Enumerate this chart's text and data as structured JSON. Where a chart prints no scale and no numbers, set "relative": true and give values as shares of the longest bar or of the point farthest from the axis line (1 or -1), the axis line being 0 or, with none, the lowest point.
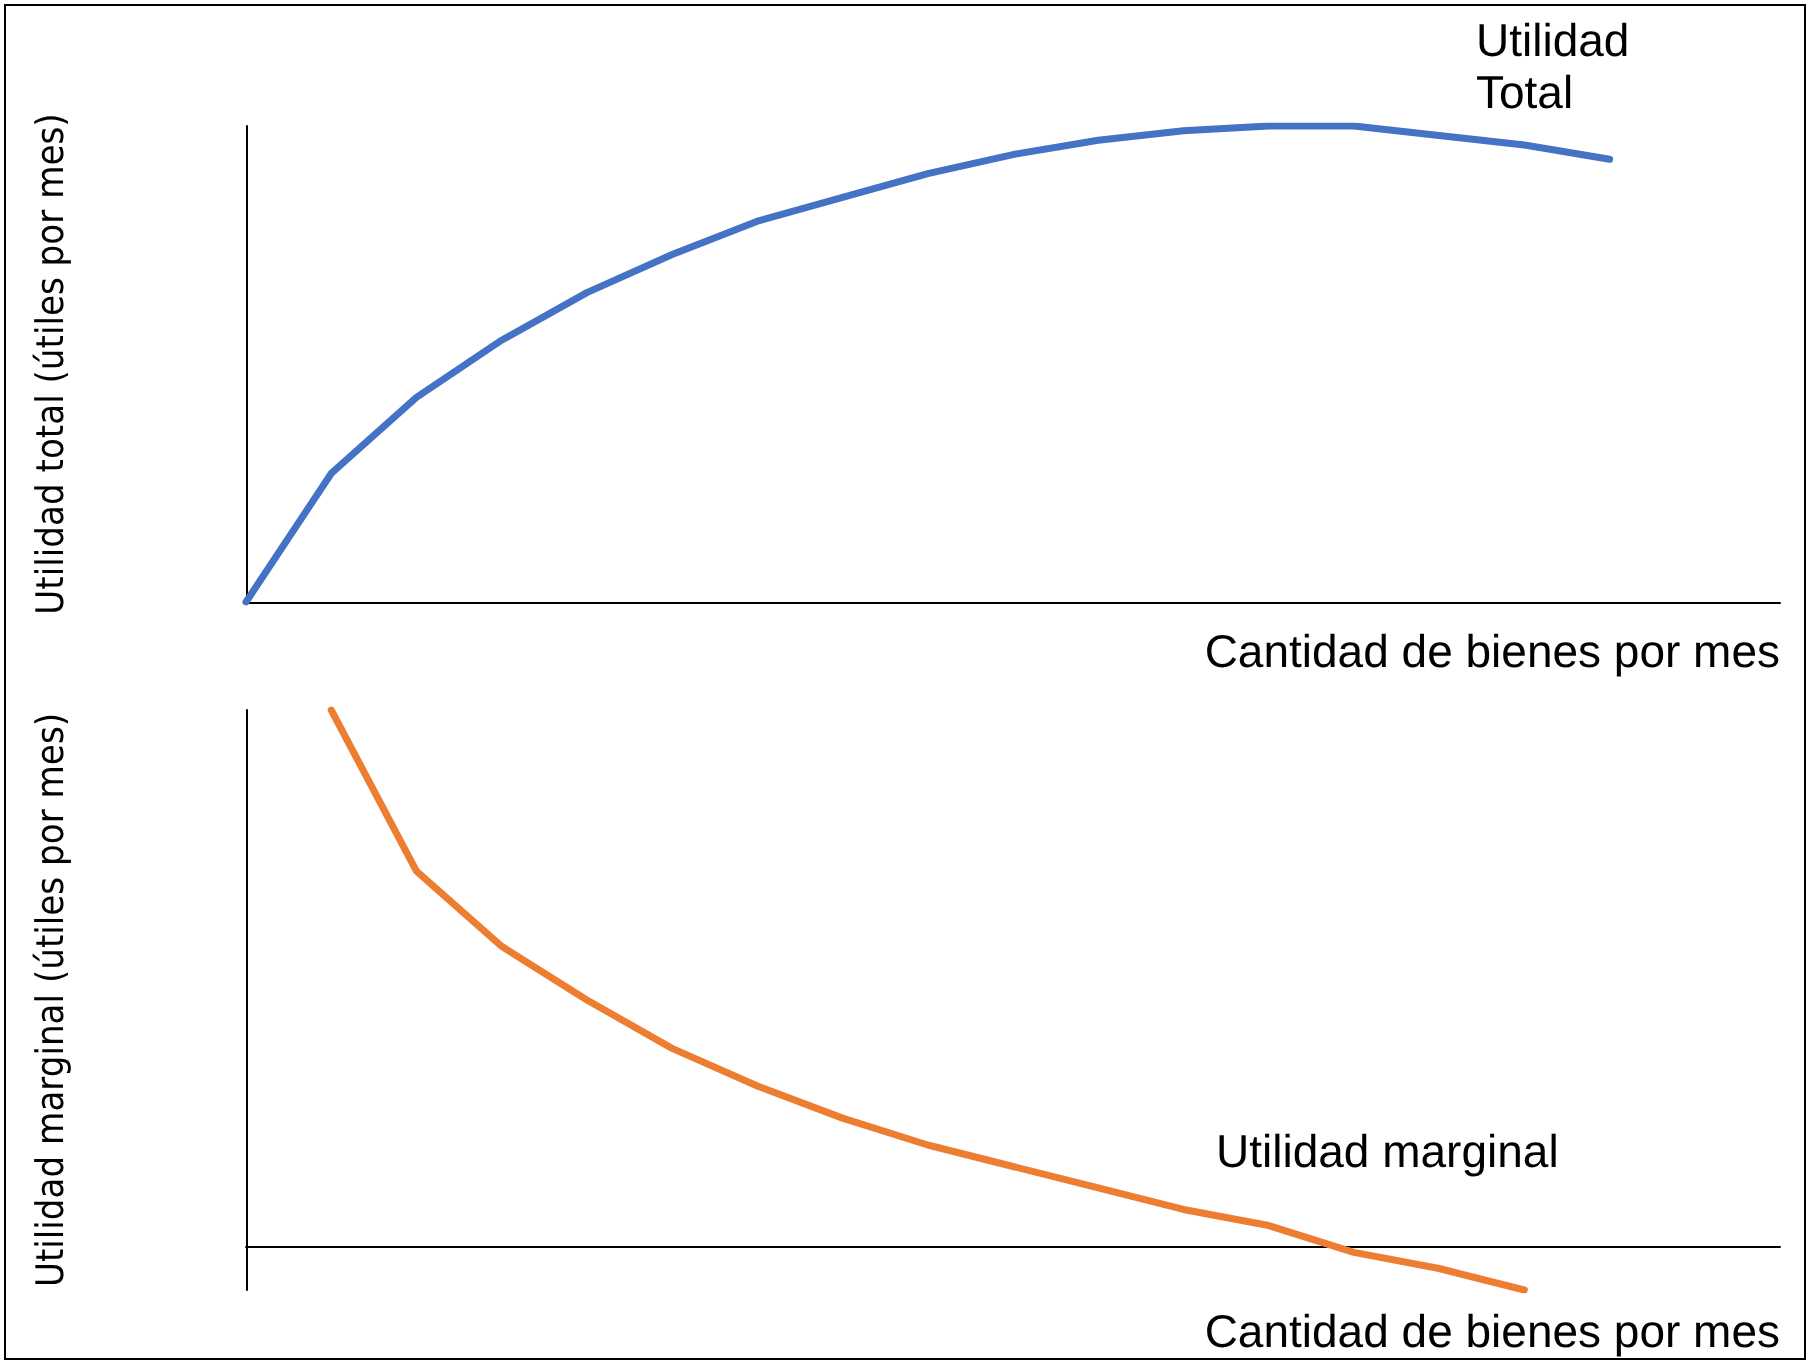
{
  "chart_data": [
    {
      "type": "line",
      "relative": true,
      "xlabel": "Cantidad de bienes por mes",
      "ylabel": "Utilidad total (útiles por mes)",
      "annotations": [
        "Utilidad\nTotal"
      ],
      "categories": [
        null,
        null,
        null,
        null,
        null,
        null,
        null,
        null,
        null,
        null,
        null,
        null,
        null,
        null,
        null,
        null,
        null,
        null,
        null
      ],
      "series": [
        {
          "color": "#4472c4",
          "values": [
            0,
            0.27,
            0.43,
            0.55,
            0.65,
            0.73,
            0.8,
            0.85,
            0.9,
            0.94,
            0.97,
            0.99,
            1,
            1,
            0.98,
            0.96,
            0.93,
            null,
            null
          ]
        }
      ],
      "marker": "none"
    },
    {
      "type": "line",
      "relative": true,
      "xlabel": "Cantidad de bienes por mes",
      "ylabel": "Utilidad marginal (útiles por mes)",
      "annotations": [
        "Utilidad marginal"
      ],
      "categories": [
        null,
        null,
        null,
        null,
        null,
        null,
        null,
        null,
        null,
        null,
        null,
        null,
        null,
        null,
        null,
        null,
        null,
        null,
        null
      ],
      "series": [
        {
          "color": "#ed7d31",
          "values": [
            null,
            1,
            0.7,
            0.56,
            0.46,
            0.37,
            0.3,
            0.24,
            0.19,
            0.15,
            0.11,
            0.07,
            0.04,
            -0.01,
            -0.04,
            -0.08,
            null,
            null,
            null
          ]
        }
      ],
      "marker": "none"
    }
  ]
}
